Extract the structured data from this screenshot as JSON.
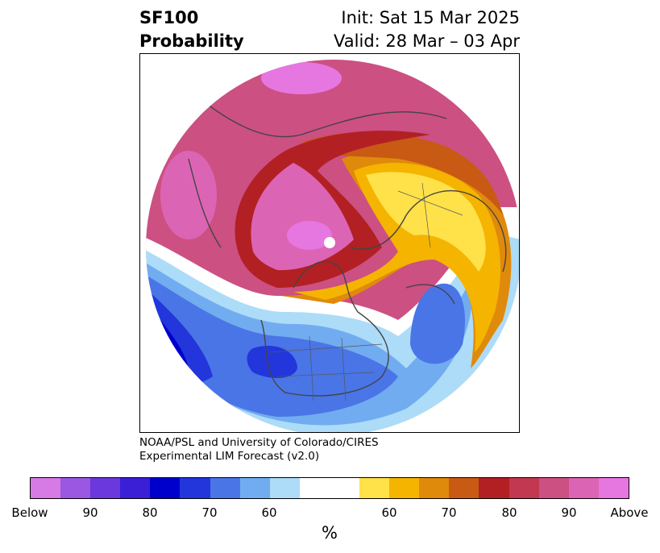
{
  "header": {
    "variable": "SF100",
    "product": "Probability",
    "init": "Init: Sat 15 Mar 2025",
    "valid": "Valid: 28 Mar – 03 Apr"
  },
  "credit": {
    "line1": "NOAA/PSL and University of Colorado/CIRES",
    "line2": "Experimental LIM Forecast (v2.0)"
  },
  "colorbar": {
    "units": "%",
    "ticks": [
      "Below",
      "90",
      "80",
      "70",
      "60",
      "60",
      "70",
      "80",
      "90",
      "Above"
    ],
    "colors": [
      "#d67ae6",
      "#9b57e2",
      "#6a38dc",
      "#3a1fd6",
      "#0000cc",
      "#2236dc",
      "#4a75e6",
      "#72acf0",
      "#acdcf8",
      "#ffffff",
      "#ffe14a",
      "#f5b400",
      "#e08a0c",
      "#c85a14",
      "#b22024",
      "#c23850",
      "#cc5082",
      "#dc64b4",
      "#e676e0"
    ]
  },
  "map": {
    "projection": "north-polar-stereographic",
    "colors": {
      "above_outer": "#e676e0",
      "above_90": "#dc64b4",
      "above_85": "#cc5082",
      "above_80": "#c23850",
      "above_75": "#b22024",
      "above_70": "#c85a14",
      "above_65": "#e08a0c",
      "above_60": "#f5b400",
      "above_55": "#ffe14a",
      "neutral": "#ffffff",
      "below_55": "#acdcf8",
      "below_60": "#72acf0",
      "below_65": "#4a75e6",
      "below_70": "#2236dc",
      "below_75": "#0000cc",
      "below_80": "#3a1fd6",
      "coast": "#444444"
    }
  }
}
